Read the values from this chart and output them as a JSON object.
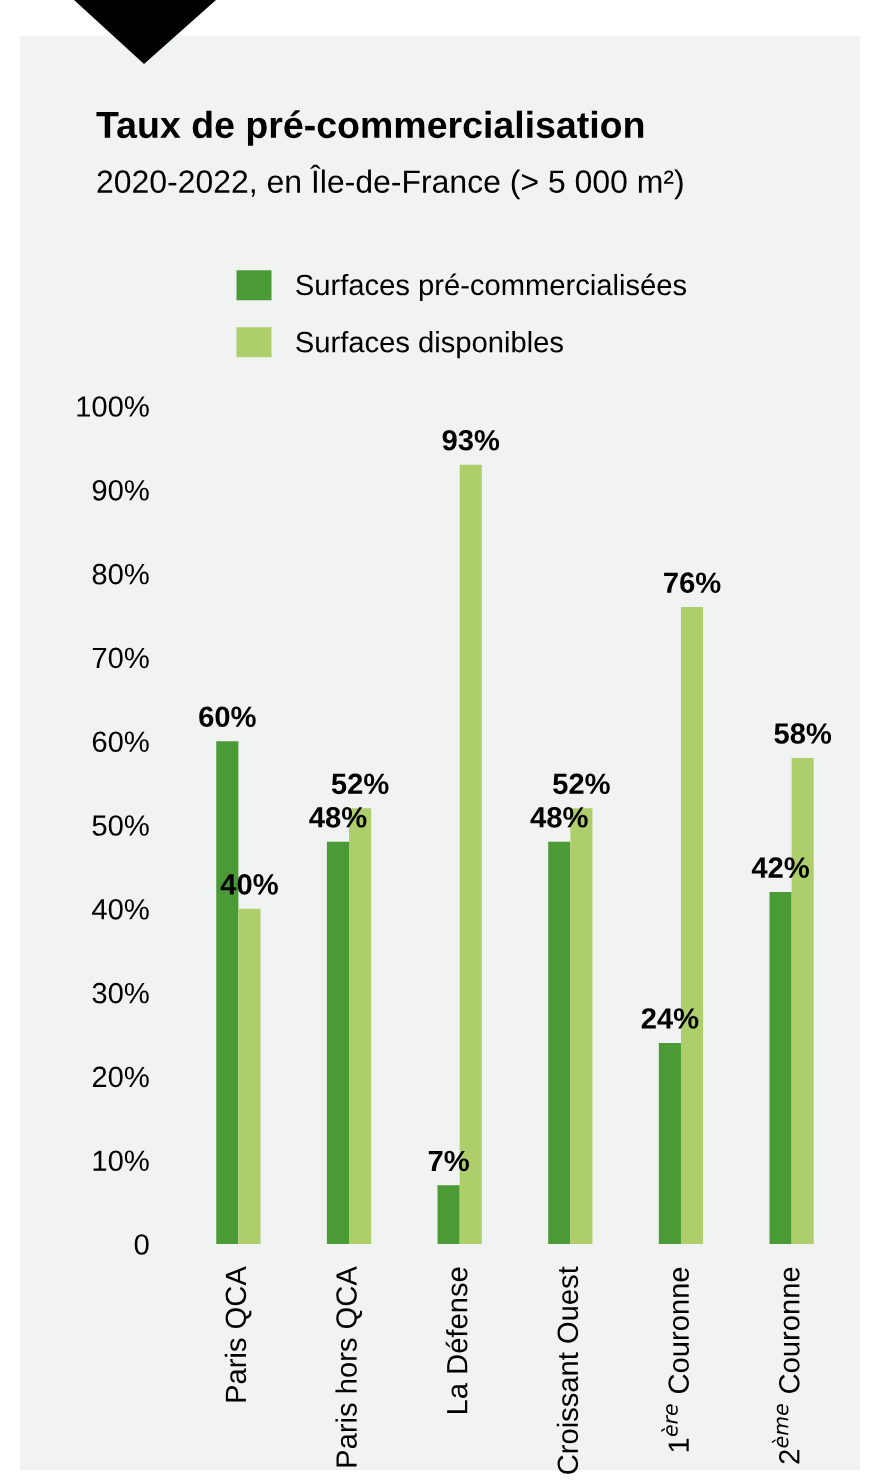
{
  "chart_data": {
    "type": "bar",
    "title": "Taux de pré-commercialisation",
    "subtitle": "2020-2022, en Île-de-France (> 5 000 m²)",
    "categories": [
      "Paris QCA",
      "Paris hors QCA",
      "La Défense",
      "Croissant Ouest",
      "1$^{ère}$ Couronne",
      "2$^{ème}$ Couronne"
    ],
    "series": [
      {
        "name": "Surfaces pré-commercialisées",
        "color": "#4a9a36",
        "values": [
          60,
          48,
          7,
          48,
          24,
          42
        ]
      },
      {
        "name": "Surfaces disponibles",
        "color": "#aece6c",
        "values": [
          40,
          52,
          93,
          52,
          76,
          58
        ]
      }
    ],
    "ylim": [
      0,
      100
    ],
    "yticks": [
      {
        "value": 0,
        "label": "0"
      },
      {
        "value": 10,
        "label": "10%"
      },
      {
        "value": 20,
        "label": "20%"
      },
      {
        "value": 30,
        "label": "30%"
      },
      {
        "value": 40,
        "label": "40%"
      },
      {
        "value": 50,
        "label": "50%"
      },
      {
        "value": 60,
        "label": "60%"
      },
      {
        "value": 70,
        "label": "70%"
      },
      {
        "value": 80,
        "label": "80%"
      },
      {
        "value": 90,
        "label": "90%"
      },
      {
        "value": 100,
        "label": "100%"
      }
    ],
    "value_labels": [
      [
        "60%",
        "48%",
        "7%",
        "48%",
        "24%",
        "42%"
      ],
      [
        "40%",
        "52%",
        "93%",
        "52%",
        "76%",
        "58%"
      ]
    ],
    "grid": false,
    "legend": "top"
  }
}
